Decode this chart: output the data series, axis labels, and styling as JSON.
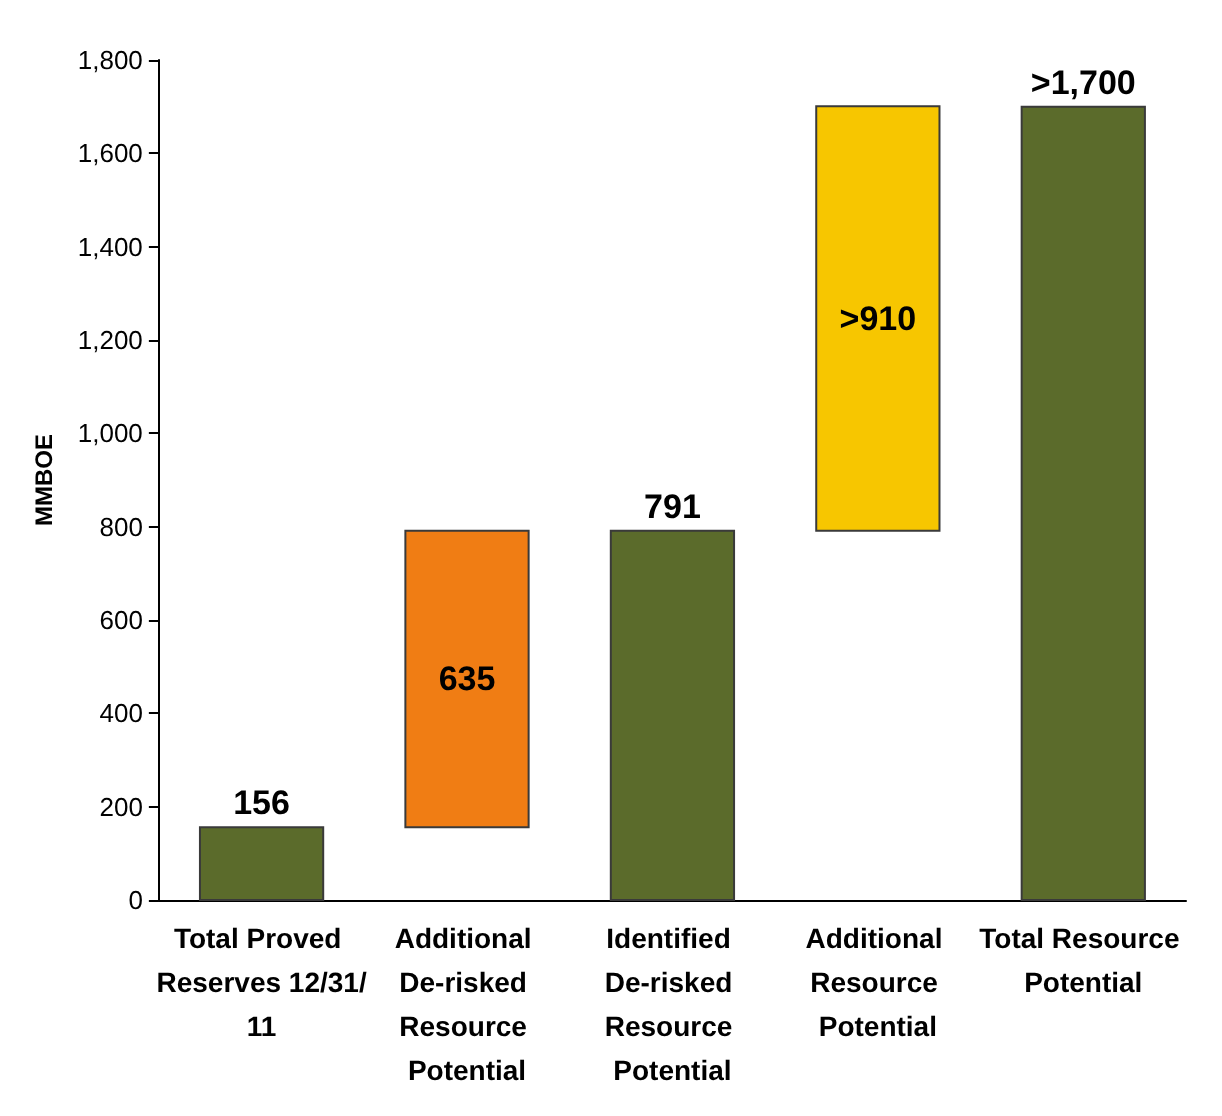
{
  "chart_data": {
    "type": "bar",
    "ylabel": "MMBOE",
    "categories": [
      "Total Proved Reserves 12/31/11",
      "Additional De-risked Resource Potential",
      "Identified De-risked Resource Potential",
      "Additional Resource Potential",
      "Total Resource Potential"
    ],
    "values": [
      156,
      635,
      791,
      910,
      1700
    ],
    "base": [
      0,
      156,
      0,
      791,
      0
    ],
    "colors": [
      "#5b6b2b",
      "#f07d14",
      "#5b6b2b",
      "#f7c600",
      "#5b6b2b"
    ],
    "value_labels": [
      "156",
      "635",
      "791",
      ">910",
      ">1,700"
    ],
    "ylim": [
      0,
      1800
    ],
    "yticks": [
      0,
      200,
      400,
      600,
      800,
      {
        "value": 1000,
        "label": "1,000"
      },
      {
        "value": 1200,
        "label": "1,200"
      },
      {
        "value": 1400,
        "label": "1,400"
      },
      {
        "value": 1600,
        "label": "1,600"
      },
      {
        "value": 1800,
        "label": "1,800"
      }
    ],
    "grid": false
  }
}
